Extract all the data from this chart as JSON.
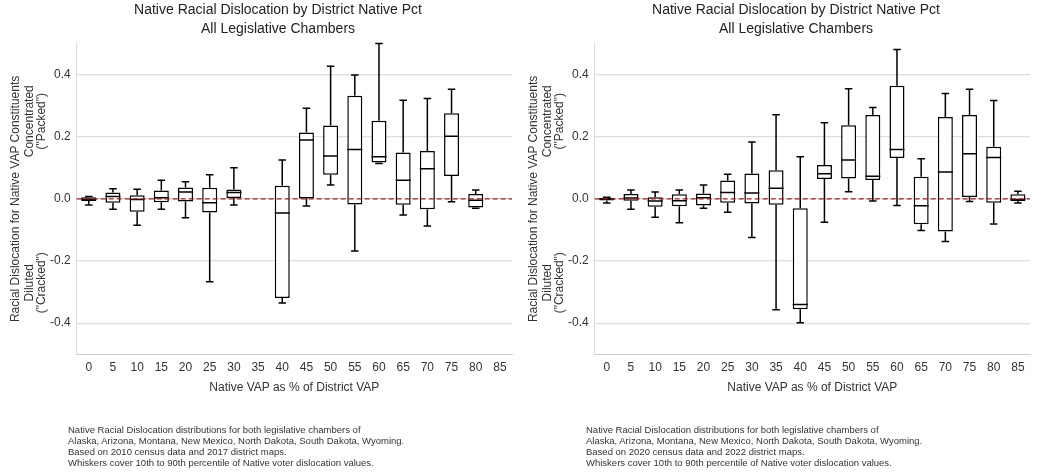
{
  "chart_data": [
    {
      "type": "box",
      "title": "Native Racial Dislocation by District Native Pct",
      "subtitle": "All Legislative Chambers",
      "xlabel": "Native VAP as % of District VAP",
      "ylabel": "Racial Dislocation for Native VAP Constituents",
      "categories": [
        "0",
        "5",
        "10",
        "15",
        "20",
        "25",
        "30",
        "35",
        "40",
        "45",
        "50",
        "55",
        "60",
        "65",
        "70",
        "75",
        "80",
        "85"
      ],
      "boxes": [
        {
          "low": -0.02,
          "q1": -0.007,
          "median": -0.002,
          "q3": 0.005,
          "high": 0.008
        },
        {
          "low": -0.033,
          "q1": -0.012,
          "median": 0.008,
          "q3": 0.021,
          "high": 0.033
        },
        {
          "low": -0.085,
          "q1": -0.041,
          "median": -0.002,
          "q3": 0.012,
          "high": 0.031
        },
        {
          "low": -0.033,
          "q1": -0.011,
          "median": 0.004,
          "q3": 0.027,
          "high": 0.06
        },
        {
          "low": -0.061,
          "q1": -0.008,
          "median": 0.022,
          "q3": 0.037,
          "high": 0.055
        },
        {
          "low": -0.267,
          "q1": -0.044,
          "median": -0.012,
          "q3": 0.036,
          "high": 0.078
        },
        {
          "low": -0.02,
          "q1": 0.003,
          "median": 0.021,
          "q3": 0.03,
          "high": 0.1
        },
        null,
        {
          "low": -0.335,
          "q1": -0.319,
          "median": -0.045,
          "q3": 0.042,
          "high": 0.125
        },
        {
          "low": -0.023,
          "q1": 0.001,
          "median": 0.19,
          "q3": 0.214,
          "high": 0.292
        },
        {
          "low": 0.045,
          "q1": 0.078,
          "median": 0.138,
          "q3": 0.236,
          "high": 0.427
        },
        {
          "low": -0.168,
          "q1": -0.018,
          "median": 0.159,
          "q3": 0.332,
          "high": 0.399
        },
        {
          "low": 0.114,
          "q1": 0.117,
          "median": 0.136,
          "q3": 0.252,
          "high": 0.5
        },
        {
          "low": -0.052,
          "q1": -0.019,
          "median": 0.06,
          "q3": 0.149,
          "high": 0.318
        },
        {
          "low": -0.087,
          "q1": -0.033,
          "median": 0.097,
          "q3": 0.154,
          "high": 0.323
        },
        {
          "low": -0.009,
          "q1": 0.074,
          "median": 0.202,
          "q3": 0.276,
          "high": 0.353
        },
        {
          "low": -0.03,
          "q1": -0.028,
          "median": -0.004,
          "q3": 0.016,
          "high": 0.029
        },
        null
      ],
      "ylim": [
        -0.5,
        0.5
      ],
      "yticks": [
        -0.4,
        -0.2,
        {
          "value": 0,
          "label": "0.0"
        },
        0.2,
        0.4
      ],
      "grid": "y",
      "ref_lines": [
        {
          "axis": "y",
          "value": 0,
          "color": "#a01c1c",
          "line_style": "dashed"
        }
      ],
      "annotations": [
        "Concentrated\n(\"Packed\")",
        "Diluted\n(\"Cracked\")",
        "Native Racial Dislocation distributions for both legislative chambers of",
        "Alaska, Arizona, Montana, New Mexico, North Dakota, South Dakota, Wyoming.",
        "Based on 2010 census data and 2017 district maps.",
        "Whiskers cover 10th to 90th percentile of Native voter dislocation values."
      ]
    },
    {
      "type": "box",
      "title": "Native Racial Dislocation by District Native Pct",
      "subtitle": "All Legislative Chambers",
      "xlabel": "Native VAP as % of District VAP",
      "ylabel": "Racial Dislocation for Native VAP Constituents",
      "categories": [
        "0",
        "5",
        "10",
        "15",
        "20",
        "25",
        "30",
        "35",
        "40",
        "45",
        "50",
        "55",
        "60",
        "65",
        "70",
        "75",
        "80",
        "85"
      ],
      "boxes": [
        {
          "low": -0.013,
          "q1": -0.005,
          "median": 0,
          "q3": 0.004,
          "high": 0.005
        },
        {
          "low": -0.033,
          "q1": -0.006,
          "median": 0.003,
          "q3": 0.016,
          "high": 0.029
        },
        {
          "low": -0.059,
          "q1": -0.025,
          "median": -0.007,
          "q3": 0.005,
          "high": 0.022
        },
        {
          "low": -0.077,
          "q1": -0.024,
          "median": -0.006,
          "q3": 0.015,
          "high": 0.029
        },
        {
          "low": -0.03,
          "q1": -0.021,
          "median": 0.004,
          "q3": 0.017,
          "high": 0.045
        },
        {
          "low": -0.043,
          "q1": -0.012,
          "median": 0.021,
          "q3": 0.059,
          "high": 0.079
        },
        {
          "low": -0.124,
          "q1": -0.015,
          "median": 0.019,
          "q3": 0.082,
          "high": 0.183
        },
        {
          "low": -0.357,
          "q1": -0.019,
          "median": 0.034,
          "q3": 0.092,
          "high": 0.271
        },
        {
          "low": -0.399,
          "q1": -0.355,
          "median": -0.34,
          "q3": -0.03,
          "high": 0.136
        },
        {
          "low": -0.075,
          "q1": 0.064,
          "median": 0.081,
          "q3": 0.109,
          "high": 0.245
        },
        {
          "low": 0.023,
          "q1": 0.066,
          "median": 0.125,
          "q3": 0.237,
          "high": 0.355
        },
        {
          "low": -0.007,
          "q1": 0.061,
          "median": 0.073,
          "q3": 0.27,
          "high": 0.294
        },
        {
          "low": -0.021,
          "q1": 0.132,
          "median": 0.159,
          "q3": 0.364,
          "high": 0.481
        },
        {
          "low": -0.102,
          "q1": -0.082,
          "median": -0.022,
          "q3": 0.071,
          "high": 0.129
        },
        {
          "low": -0.137,
          "q1": -0.105,
          "median": 0.087,
          "q3": 0.264,
          "high": 0.339
        },
        {
          "low": -0.008,
          "q1": 0.006,
          "median": 0.145,
          "q3": 0.27,
          "high": 0.353
        },
        {
          "low": -0.081,
          "q1": -0.012,
          "median": 0.133,
          "q3": 0.168,
          "high": 0.317
        },
        {
          "low": -0.013,
          "q1": -0.007,
          "median": -0.002,
          "q3": 0.015,
          "high": 0.025
        }
      ],
      "ylim": [
        -0.5,
        0.5
      ],
      "yticks": [
        -0.4,
        -0.2,
        {
          "value": 0,
          "label": "0.0"
        },
        0.2,
        0.4
      ],
      "grid": "y",
      "ref_lines": [
        {
          "axis": "y",
          "value": 0,
          "color": "#a01c1c",
          "line_style": "dashed"
        }
      ],
      "annotations": [
        "Concentrated\n(\"Packed\")",
        "Diluted\n(\"Cracked\")",
        "Native Racial Dislocation distributions for both legislative chambers of",
        "Alaska, Arizona, Montana, New Mexico, North Dakota, South Dakota, Wyoming.",
        "Based on 2020 census data and 2022 district maps.",
        "Whiskers cover 10th to 90th percentile of Native voter dislocation values."
      ]
    }
  ]
}
